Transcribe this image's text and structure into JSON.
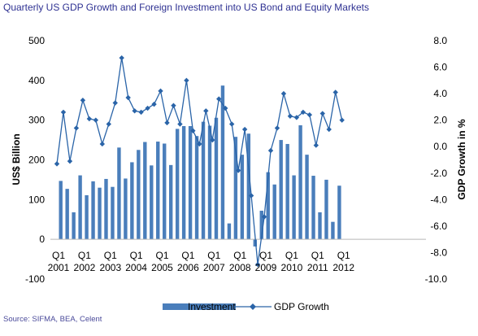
{
  "chart_data": {
    "type": "bar+line",
    "title": "Quarterly US GDP Growth and Foreign Investment into US Bond and Equity Markets",
    "source": "Source: SIFMA, BEA, Celent",
    "left_axis": {
      "label": "US$ Billion",
      "ticks": [
        "500",
        "400",
        "300",
        "200",
        "100",
        "0",
        "-100"
      ],
      "range": [
        -100,
        500
      ]
    },
    "right_axis": {
      "label": "GDP Growth in %",
      "ticks": [
        "8.0",
        "6.0",
        "4.0",
        "2.0",
        "0.0",
        "-2.0",
        "-4.0",
        "-6.0",
        "-8.0",
        "-10.0"
      ],
      "range": [
        -10,
        8
      ]
    },
    "x_tick_labels": [
      {
        "q": "Q1",
        "year": "2001"
      },
      {
        "q": "Q1",
        "year": "2002"
      },
      {
        "q": "Q1",
        "year": "2003"
      },
      {
        "q": "Q1",
        "year": "2004"
      },
      {
        "q": "Q1",
        "year": "2005"
      },
      {
        "q": "Q1",
        "year": "2006"
      },
      {
        "q": "Q1",
        "year": "2007"
      },
      {
        "q": "Q1",
        "year": "2008"
      },
      {
        "q": "Q1",
        "year": "2009"
      },
      {
        "q": "Q1",
        "year": "2010"
      },
      {
        "q": "Q1",
        "year": "2011"
      },
      {
        "q": "Q1",
        "year": "2012"
      }
    ],
    "series": [
      {
        "name": "Investment",
        "kind": "bar",
        "axis": "left",
        "color": "#4a7ebb",
        "values": [
          147,
          127,
          68,
          161,
          111,
          146,
          130,
          152,
          132,
          231,
          153,
          194,
          225,
          245,
          186,
          246,
          241,
          187,
          278,
          285,
          285,
          260,
          296,
          286,
          306,
          387,
          40,
          258,
          213,
          266,
          -18,
          72,
          169,
          138,
          250,
          240,
          161,
          287,
          213,
          160,
          68,
          150,
          44,
          135
        ]
      },
      {
        "name": "GDP Growth",
        "kind": "line",
        "axis": "right",
        "color": "#2a64a8",
        "values": [
          -1.3,
          2.6,
          -1.1,
          1.4,
          3.5,
          2.1,
          2.0,
          0.2,
          1.7,
          3.3,
          6.7,
          3.7,
          2.7,
          2.6,
          2.9,
          3.2,
          4.2,
          1.8,
          3.1,
          1.7,
          5.0,
          1.2,
          0.2,
          2.7,
          0.5,
          3.6,
          2.9,
          1.7,
          -1.8,
          1.3,
          -3.7,
          -8.9,
          -5.3,
          -0.3,
          1.4,
          4.0,
          2.3,
          2.2,
          2.6,
          2.4,
          0.1,
          2.5,
          1.3,
          4.1,
          2.0
        ]
      }
    ]
  }
}
